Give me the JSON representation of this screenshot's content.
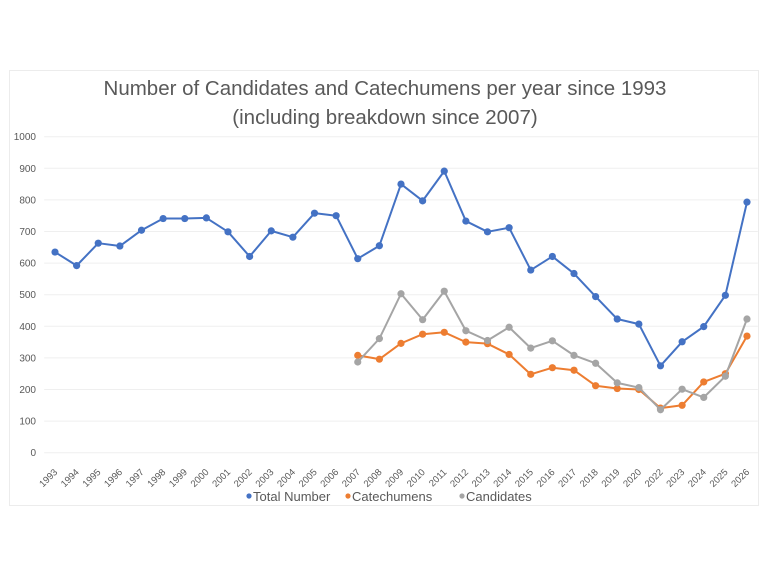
{
  "chart_data": {
    "type": "line",
    "title": "Number of Candidates and Catechumens per year since 1993",
    "subtitle": "(including breakdown since 2007)",
    "xlabel": "",
    "ylabel": "",
    "ylim": [
      0,
      1000
    ],
    "yticks": [
      "0",
      "100",
      "200",
      "300",
      "400",
      "500",
      "600",
      "700",
      "800",
      "900",
      "1000"
    ],
    "grid": true,
    "legend_position": "bottom",
    "categories": [
      "1993",
      "1994",
      "1995",
      "1996",
      "1997",
      "1998",
      "1999",
      "2000",
      "2001",
      "2002",
      "2003",
      "2004",
      "2005",
      "2006",
      "2007",
      "2008",
      "2009",
      "2010",
      "2011",
      "2012",
      "2013",
      "2014",
      "2015",
      "2016",
      "2017",
      "2018",
      "2019",
      "2020",
      "2022",
      "2023",
      "2024",
      "2025",
      "2026"
    ],
    "series": [
      {
        "name": "Total Number",
        "color": "#4472c4",
        "values": [
          635,
          592,
          663,
          654,
          704,
          741,
          741,
          743,
          699,
          621,
          702,
          682,
          758,
          750,
          614,
          655,
          850,
          797,
          891,
          733,
          699,
          712,
          578,
          621,
          567,
          494,
          423,
          407,
          275,
          351,
          399,
          498,
          793
        ]
      },
      {
        "name": "Catechumens",
        "color": "#ed7d31",
        "values": [
          null,
          null,
          null,
          null,
          null,
          null,
          null,
          null,
          null,
          null,
          null,
          null,
          null,
          null,
          308,
          296,
          346,
          375,
          381,
          350,
          345,
          311,
          248,
          269,
          261,
          212,
          203,
          200,
          141,
          150,
          224,
          250,
          369
        ]
      },
      {
        "name": "Candidates",
        "color": "#a5a5a5",
        "values": [
          null,
          null,
          null,
          null,
          null,
          null,
          null,
          null,
          null,
          null,
          null,
          null,
          null,
          null,
          287,
          361,
          503,
          421,
          511,
          386,
          355,
          397,
          331,
          354,
          308,
          283,
          221,
          206,
          136,
          201,
          175,
          242,
          423
        ]
      }
    ]
  },
  "colors": {
    "text": "#595959",
    "grid": "#efefef"
  }
}
